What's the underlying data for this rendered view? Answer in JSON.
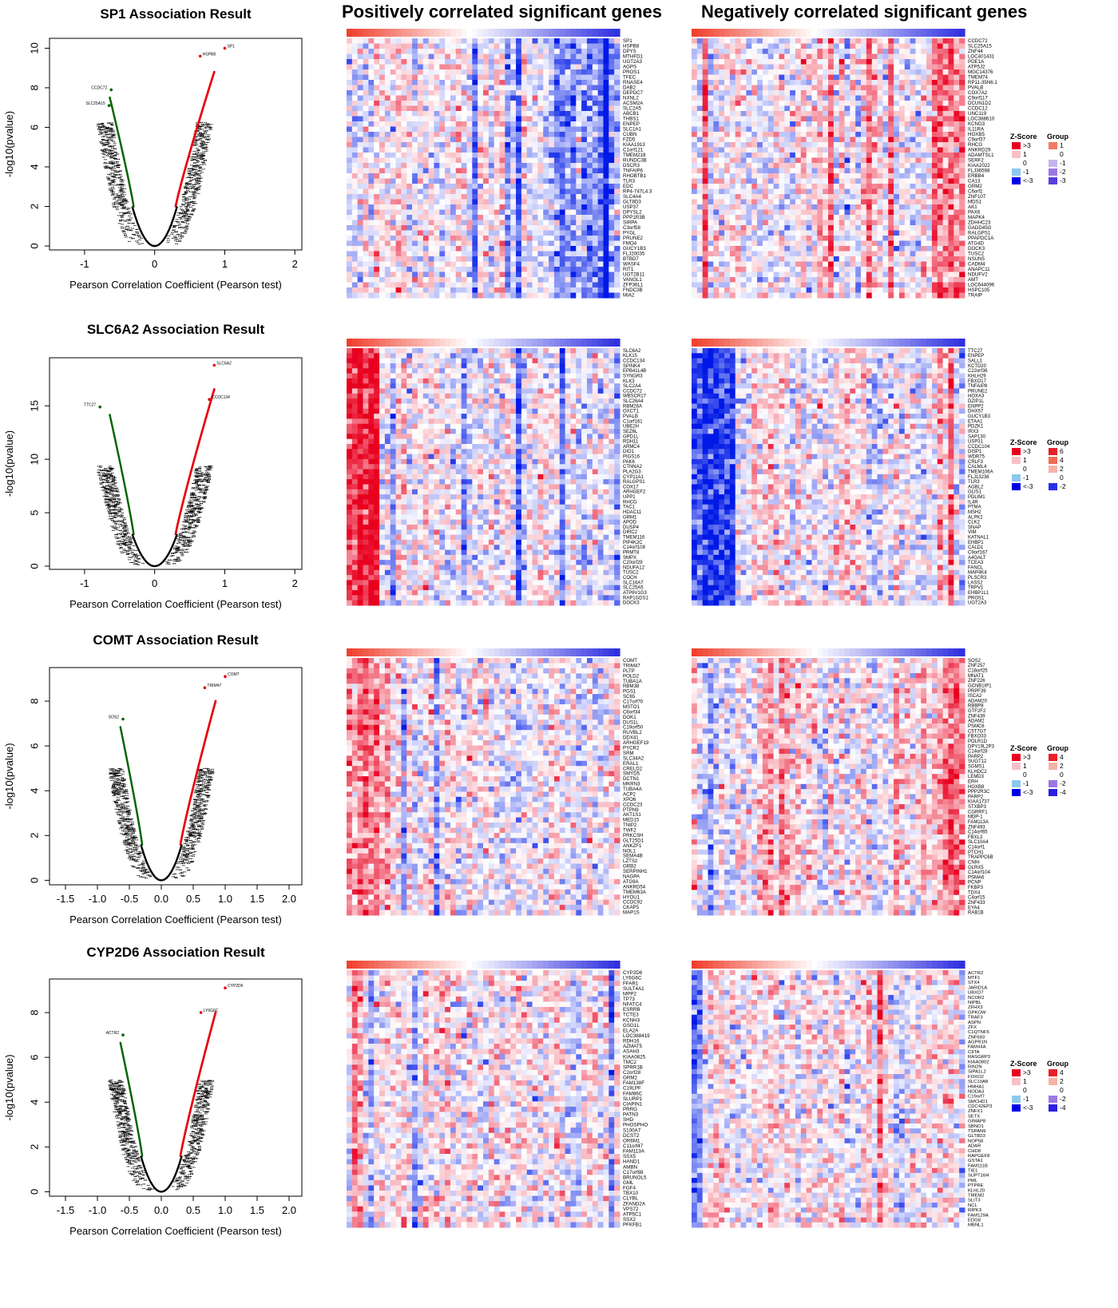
{
  "headers": {
    "positive": "Positively correlated significant genes",
    "negative": "Negatively correlated significant genes"
  },
  "colors": {
    "zscore_high": "#e8001f",
    "zscore_mid": "#ffffff",
    "zscore_low": "#0000e6",
    "points_pos": "#e8000a",
    "points_neg": "#006400",
    "points_bulk": "#000000"
  },
  "chart_data": [
    {
      "type": "scatter",
      "gene": "SP1",
      "title": "SP1 Association Result",
      "xlabel": "Pearson Correlation Coefficient (Pearson test)",
      "ylabel": "-log10(pvalue)",
      "xlim": [
        -1.5,
        2.1
      ],
      "ylim": [
        -0.2,
        10.5
      ],
      "xticks": [
        "-1",
        "0",
        "1",
        "2"
      ],
      "xtick_values": [
        -1,
        0,
        1,
        2
      ],
      "yticks": [
        "0",
        "2",
        "4",
        "6",
        "8",
        "10"
      ],
      "ytick_values": [
        0,
        2,
        4,
        6,
        8,
        10
      ],
      "highlights": [
        {
          "label": "SP1",
          "x": 1.0,
          "y": 10.0,
          "color": "red"
        },
        {
          "label": "HSPB8",
          "x": 0.65,
          "y": 9.6,
          "color": "red"
        },
        {
          "label": "CCDC72",
          "x": -0.62,
          "y": 7.9,
          "color": "green"
        },
        {
          "label": "SLC25A15",
          "x": -0.65,
          "y": 7.1,
          "color": "green"
        }
      ],
      "pos_genes": [
        "SP1",
        "HSPB8",
        "DPYS",
        "MTHFD1",
        "UGT2A3",
        "AGPS",
        "PROS1",
        "TFEC",
        "RNASE4",
        "DAB2",
        "DEPDC7",
        "NXNL2",
        "ACSM2A",
        "SLC2A5",
        "ABCB1",
        "THBS1",
        "ENPEP",
        "SLC1A1",
        "CUBN",
        "FZD5",
        "KIAA1913",
        "C1orf121",
        "TMEM218",
        "RUNDC3B",
        "DSCR3",
        "TNFAIP6",
        "RHOBTB1",
        "TLR3",
        "EDC",
        "RP4-747L4.3",
        "SLC4A4",
        "GLT8D3",
        "USP37",
        "DPYSL2",
        "PPP1R3B",
        "SIRPA",
        "C3orf58",
        "PYGL",
        "PRUNE2",
        "FMO4",
        "GUCY1B3",
        "FLJ20035",
        "BTBD7",
        "WASF4",
        "RIT1",
        "UGT2B11",
        "VANGL1",
        "ZFP36L1",
        "FNDC3B",
        "MIA2"
      ],
      "neg_genes": [
        "CCDC72",
        "SLC25A15",
        "ZNF44",
        "LOC401431",
        "PDE1A",
        "ATP5J2",
        "MGC14376",
        "TMEM74",
        "RP11-35N6.1",
        "PVALB",
        "COX7A2",
        "C9orf117",
        "DCUN1D2",
        "CCDC12",
        "UNC119",
        "LOC388610",
        "KCNG3",
        "IL11RA",
        "HOXB5",
        "C9orf37",
        "RHCG",
        "ANKRD29",
        "ADAMTSL1",
        "SERF2",
        "KIAA2022",
        "FLJ36598",
        "ERBB4",
        "CA13",
        "GRM2",
        "C6orf1",
        "ZNF107",
        "MDS1",
        "AK1",
        "PAX6",
        "MAPK4",
        "ZDHHC23",
        "GADD45G",
        "RALGPS1",
        "PPAPDC1A",
        "ATG4D",
        "DOCK3",
        "TUSC2",
        "NSUN5",
        "CADM4",
        "ANAPC11",
        "NDUFV2",
        "AMT",
        "LOC644096",
        "HSPC105",
        "TRAIP"
      ],
      "legend": {
        "zscore_title": "Z-Score",
        "zscore_labels": [
          ">3",
          "1",
          "0",
          "-1",
          "<-3"
        ],
        "group_title": "Group",
        "group_labels": [
          "1",
          "0",
          "-1",
          "-2",
          "-3"
        ],
        "group_colors": [
          "#f27a66",
          "#ffffff",
          "#c8b4ee",
          "#9a78e4",
          "#5a3ce0"
        ]
      }
    },
    {
      "type": "scatter",
      "gene": "SLC6A2",
      "title": "SLC6A2 Association Result",
      "xlabel": "Pearson Correlation Coefficient (Pearson test)",
      "ylabel": "-log10(pvalue)",
      "xlim": [
        -1.5,
        2.1
      ],
      "ylim": [
        -0.3,
        19.5
      ],
      "xticks": [
        "-1",
        "0",
        "1",
        "2"
      ],
      "xtick_values": [
        -1,
        0,
        1,
        2
      ],
      "yticks": [
        "0",
        "5",
        "10",
        "15"
      ],
      "ytick_values": [
        0,
        5,
        10,
        15
      ],
      "highlights": [
        {
          "label": "SLC6A2",
          "x": 0.85,
          "y": 18.8,
          "color": "red"
        },
        {
          "label": "CCDC134",
          "x": 0.78,
          "y": 15.6,
          "color": "red"
        },
        {
          "label": "TTC27",
          "x": -0.78,
          "y": 14.9,
          "color": "green"
        }
      ],
      "pos_genes": [
        "SLC6A2",
        "KLK15",
        "CCDC134",
        "SPINK4",
        "EPB41L4B",
        "SYNGR3",
        "KLK3",
        "SLC2A4",
        "CCDC72",
        "WBSCR17",
        "SLC26A4",
        "RBM26A",
        "OXCT1",
        "PVALB",
        "C1orf161",
        "UBE2H",
        "SEZ6L",
        "GPD1L",
        "RDH11",
        "ARMC4",
        "DIO1",
        "PIGS16",
        "PAK6",
        "CTNNA2",
        "PLA2G3",
        "CYP11A1",
        "RALGPS1",
        "COX17",
        "ARHGEF2",
        "UPP1",
        "RHCG",
        "TAC1",
        "HDAC11",
        "GRM1",
        "APOD",
        "DUSP4",
        "DIRC2",
        "TMEM116",
        "PIP4K2C",
        "C14orf108",
        "PRMT8",
        "SMPX",
        "C20orf29",
        "NDUFA12",
        "TUSC2",
        "COCH",
        "SLC16A7",
        "SLC25A5",
        "ATP6V1G3",
        "RAP1GDS1",
        "DOCK3"
      ],
      "neg_genes": [
        "TTC27",
        "ENPEP",
        "SALL1",
        "KCTD20",
        "C22orf36",
        "KHLH29",
        "FBXO17",
        "TNFAIP8",
        "PRUNE2",
        "HOXA3",
        "DZIP1L",
        "ENPP2",
        "DHX57",
        "GUCY1B3",
        "ETAA1",
        "PDZK1",
        "IRX3",
        "SAP130",
        "USP31",
        "CCDC104",
        "DISP1",
        "WDR75",
        "CRLF3",
        "CALML4",
        "TMEM106A",
        "FLJ13236",
        "TLR3",
        "AGBL2",
        "GLIS1",
        "PDLIM1",
        "IL4R",
        "PTMA",
        "MSH2",
        "ALPK2",
        "CLK2",
        "SNAP",
        "VIM",
        "KATNAL1",
        "EHBP1",
        "CALD1",
        "C9orf167",
        "A4GALT",
        "TCEA3",
        "FANCL",
        "MAP4K4",
        "PLSCR3",
        "LASS2",
        "TRPV1",
        "EHBP1L1",
        "PROS1",
        "UGT2A3"
      ],
      "legend": {
        "zscore_title": "Z-Score",
        "zscore_labels": [
          ">3",
          "1",
          "0",
          "-1",
          "<-3"
        ],
        "group_title": "Group",
        "group_labels": [
          "6",
          "4",
          "2",
          "0",
          "-2"
        ],
        "group_colors": [
          "#e8202a",
          "#f26b55",
          "#f7b3a6",
          "#ffffff",
          "#2a30e8"
        ]
      }
    },
    {
      "type": "scatter",
      "gene": "COMT",
      "title": "COMT Association Result",
      "xlabel": "Pearson Correlation Coefficient (Pearson test)",
      "ylabel": "-log10(pvalue)",
      "xlim": [
        -1.75,
        2.2
      ],
      "ylim": [
        -0.2,
        9.5
      ],
      "xticks": [
        "-1.5",
        "-1.0",
        "-0.5",
        "0.0",
        "0.5",
        "1.0",
        "1.5",
        "2.0"
      ],
      "xtick_values": [
        -1.5,
        -1.0,
        -0.5,
        0.0,
        0.5,
        1.0,
        1.5,
        2.0
      ],
      "yticks": [
        "0",
        "2",
        "4",
        "6",
        "8"
      ],
      "ytick_values": [
        0,
        2,
        4,
        6,
        8
      ],
      "highlights": [
        {
          "label": "COMT",
          "x": 1.0,
          "y": 9.1,
          "color": "red"
        },
        {
          "label": "TRIM47",
          "x": 0.68,
          "y": 8.6,
          "color": "red"
        },
        {
          "label": "SOS2",
          "x": -0.6,
          "y": 7.2,
          "color": "green"
        }
      ],
      "pos_genes": [
        "COMT",
        "TRIM47",
        "PLTP",
        "POLD2",
        "TUBA1A",
        "RBM38",
        "PGS1",
        "SC65",
        "C17orf70",
        "MSTO1",
        "C6orf34",
        "DOK1",
        "DUS1L",
        "C19orf50",
        "RUVBL2",
        "DDX41",
        "ARHGEF19",
        "PYCR2",
        "SRM",
        "SLC34A2",
        "ERAL1",
        "CRELD2",
        "SMYD5",
        "DCTN1",
        "MKRN3",
        "TUBA4A",
        "ACP2",
        "XPO6",
        "CCDC23",
        "PTPN9",
        "AKT1S1",
        "MED15",
        "TNIP2",
        "TWF2",
        "PRKCSH",
        "GLT25D1",
        "ANKZF1",
        "NOL1",
        "SEMA4B",
        "LZTS2",
        "GRB2",
        "SERPINH1",
        "NAGPA",
        "ATG9A",
        "ANKRD54",
        "TMEM63A",
        "HYOU1",
        "CCDC92",
        "CKAP5",
        "MAP1S"
      ],
      "neg_genes": [
        "SOS2",
        "ZNF257",
        "C18orf25",
        "MNAT1",
        "ZNF226",
        "GCNB1IP1",
        "PRPF39",
        "ISCA2",
        "ADAM20",
        "RBBP8",
        "GTF2F2",
        "ZNF439",
        "ADAM2",
        "PSMC6",
        "C5T7GT",
        "FBXO33",
        "POLR1D",
        "DPY19L2P3",
        "C14orf28",
        "PARP2",
        "SUGT12",
        "SGMS1",
        "KLHDC2",
        "LEMD3",
        "ERH",
        "HOXB8",
        "PPP2R3C",
        "PARP2",
        "KIAA1737",
        "STXBP3",
        "CGRRF1",
        "MDP-1",
        "FAM113A",
        "ZNF493",
        "C14orf65",
        "FBXL3",
        "SLC10A4",
        "C14orf1",
        "PTCH1",
        "TRAPPC6B",
        "CNIH",
        "GLRX5",
        "C14orf104",
        "PSMA6",
        "PCNP",
        "FKBP3",
        "TDX4",
        "C4orf15",
        "ZNF433",
        "EYA4",
        "RAB1B"
      ],
      "legend": {
        "zscore_title": "Z-Score",
        "zscore_labels": [
          ">3",
          "1",
          "0",
          "-1",
          "<-3"
        ],
        "group_title": "Group",
        "group_labels": [
          "4",
          "2",
          "0",
          "-2",
          "-4"
        ],
        "group_colors": [
          "#e8202a",
          "#f7b3a6",
          "#ffffff",
          "#9a78e4",
          "#2a20e0"
        ]
      }
    },
    {
      "type": "scatter",
      "gene": "CYP2D6",
      "title": "CYP2D6 Association Result",
      "xlabel": "Pearson Correlation Coefficient (Pearson test)",
      "ylabel": "-log10(pvalue)",
      "xlim": [
        -1.75,
        2.2
      ],
      "ylim": [
        -0.2,
        9.5
      ],
      "xticks": [
        "-1.5",
        "-1.0",
        "-0.5",
        "0.0",
        "0.5",
        "1.0",
        "1.5",
        "2.0"
      ],
      "xtick_values": [
        -1.5,
        -1.0,
        -0.5,
        0.0,
        0.5,
        1.0,
        1.5,
        2.0
      ],
      "yticks": [
        "0",
        "2",
        "4",
        "6",
        "8"
      ],
      "ytick_values": [
        0,
        2,
        4,
        6,
        8
      ],
      "highlights": [
        {
          "label": "CYP2D6",
          "x": 1.0,
          "y": 9.1,
          "color": "red"
        },
        {
          "label": "LY6G6C",
          "x": 0.62,
          "y": 8.0,
          "color": "red"
        },
        {
          "label": "ACTR2",
          "x": -0.6,
          "y": 7.0,
          "color": "green"
        }
      ],
      "pos_genes": [
        "CYP2D6",
        "LY6G6C",
        "FFAR1",
        "SULT4A1",
        "MPP2",
        "TP73",
        "NFATC4",
        "ESRRB",
        "TCTE3",
        "KCNH3",
        "GSG1L",
        "ELA2A",
        "LOC388419",
        "RDH16",
        "AZMAT5",
        "ASAH3",
        "KIAA0825",
        "TMC2",
        "SPRR1B",
        "C2orf28",
        "GRM2",
        "FAM138F",
        "C19LPF",
        "FAM86C",
        "SLURP1",
        "CIAPIN1",
        "PRRG",
        "PATN3",
        "SHD",
        "PHOSPHO",
        "S100A7",
        "DCST2",
        "OR6M1",
        "C11orf47",
        "FAM113A",
        "SSX5",
        "HAND1",
        "AMBN",
        "C17orf88",
        "BRUNOL5",
        "GML",
        "FGF4",
        "TBX10",
        "CLYBL",
        "ZFAND2A",
        "VPS72",
        "ATP5C1",
        "SSX2",
        "PFKFB1"
      ],
      "neg_genes": [
        "ACTR2",
        "MTF1",
        "STX4",
        "JARID1A",
        "UBXD7",
        "NCOR2",
        "NIPBL",
        "ZFHX3",
        "GPKOW",
        "TRAF3",
        "ASPN",
        "ZFX",
        "C1QTNF5",
        "ZNF683",
        "AGPR1N",
        "FAM44A",
        "CIITA",
        "RASGRP3",
        "KIAA0802",
        "RIN2N",
        "SIPA1L2",
        "FOXO2",
        "SLC10A8",
        "HMHA1",
        "NODA3",
        "C19orf7",
        "SMCHD1",
        "CDC42EP3",
        "ZNFX1",
        "SETX",
        "GIMAP8",
        "SBNO1",
        "TSPAN9",
        "GLT8D3",
        "NOP58",
        "ADAR",
        "CHD8",
        "RAPGEF8",
        "GSTA1",
        "FAM111B",
        "TIE1",
        "SUPT16H",
        "PML",
        "PTPRE",
        "KLHL20",
        "TMEM2",
        "SLIT3",
        "NCL",
        "RIPK3",
        "FAM129A",
        "EDG8",
        "MBNL1"
      ],
      "legend": {
        "zscore_title": "Z-Score",
        "zscore_labels": [
          ">3",
          "1",
          "0",
          "-1",
          "<-3"
        ],
        "group_title": "Group",
        "group_labels": [
          "4",
          "2",
          "0",
          "-2",
          "-4"
        ],
        "group_colors": [
          "#e8202a",
          "#f7b3a6",
          "#ffffff",
          "#9a78e4",
          "#2a20e0"
        ]
      }
    }
  ]
}
